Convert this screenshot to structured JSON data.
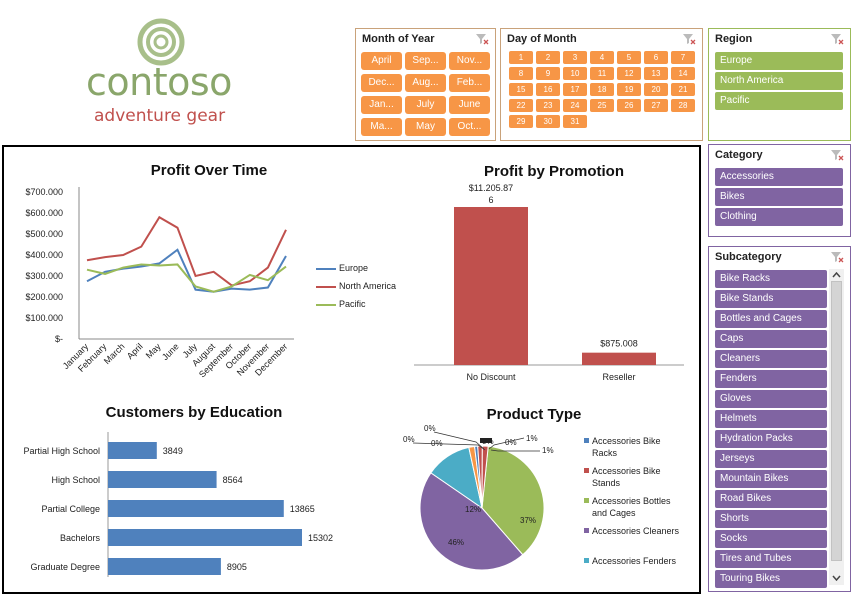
{
  "logo": {
    "word": "contoso",
    "sub": "adventure gear"
  },
  "slicers": {
    "month": {
      "title": "Month of Year",
      "items": [
        "April",
        "Sep...",
        "Nov...",
        "Dec...",
        "Aug...",
        "Feb...",
        "Jan...",
        "July",
        "June",
        "Ma...",
        "May",
        "Oct..."
      ]
    },
    "day": {
      "title": "Day of Month",
      "items": [
        "1",
        "2",
        "3",
        "4",
        "5",
        "6",
        "7",
        "8",
        "9",
        "10",
        "11",
        "12",
        "13",
        "14",
        "15",
        "16",
        "17",
        "18",
        "19",
        "20",
        "21",
        "22",
        "23",
        "24",
        "25",
        "26",
        "27",
        "28",
        "29",
        "30",
        "31"
      ]
    },
    "region": {
      "title": "Region",
      "items": [
        "Europe",
        "North America",
        "Pacific"
      ]
    },
    "category": {
      "title": "Category",
      "items": [
        "Accessories",
        "Bikes",
        "Clothing"
      ]
    },
    "subcategory": {
      "title": "Subcategory",
      "items": [
        "Bike Racks",
        "Bike Stands",
        "Bottles and Cages",
        "Caps",
        "Cleaners",
        "Fenders",
        "Gloves",
        "Helmets",
        "Hydration Packs",
        "Jerseys",
        "Mountain Bikes",
        "Road Bikes",
        "Shorts",
        "Socks",
        "Tires and Tubes",
        "Touring Bikes"
      ]
    }
  },
  "colors": {
    "orange": "#f79646",
    "green": "#9bbb59",
    "purple": "#8064a2",
    "blue": "#4f81bd",
    "red": "#c0504d",
    "teal": "#4bacc6"
  },
  "chart_data": [
    {
      "type": "line",
      "title": "Profit Over Time",
      "x": [
        "January",
        "February",
        "March",
        "April",
        "May",
        "June",
        "July",
        "August",
        "September",
        "October",
        "November",
        "December"
      ],
      "yticks": [
        "$700.000",
        "$600.000",
        "$500.000",
        "$400.000",
        "$300.000",
        "$200.000",
        "$100.000",
        "$-"
      ],
      "ylim": [
        0,
        700000
      ],
      "series": [
        {
          "name": "Europe",
          "color": "#4f81bd",
          "values": [
            275000,
            320000,
            335000,
            345000,
            360000,
            425000,
            235000,
            225000,
            240000,
            235000,
            245000,
            395000
          ]
        },
        {
          "name": "North America",
          "color": "#c0504d",
          "values": [
            375000,
            390000,
            400000,
            440000,
            580000,
            530000,
            300000,
            320000,
            255000,
            275000,
            340000,
            520000
          ]
        },
        {
          "name": "Pacific",
          "color": "#9bbb59",
          "values": [
            330000,
            310000,
            340000,
            355000,
            350000,
            355000,
            250000,
            225000,
            250000,
            305000,
            280000,
            345000
          ]
        }
      ]
    },
    {
      "type": "bar",
      "title": "Profit by Promotion",
      "categories": [
        "No Discount",
        "Reseller"
      ],
      "values": [
        11205876,
        875008
      ],
      "labels": [
        "$11.205.87",
        "6",
        "$875.008"
      ],
      "color": "#c0504d"
    },
    {
      "type": "bar",
      "orientation": "horizontal",
      "title": "Customers by Education",
      "categories": [
        "Partial High School",
        "High School",
        "Partial College",
        "Bachelors",
        "Graduate Degree"
      ],
      "values": [
        3849,
        8564,
        13865,
        15302,
        8905
      ],
      "color": "#4f81bd"
    },
    {
      "type": "pie",
      "title": "Product Type",
      "labels": [
        "37%",
        "46%",
        "12%",
        "0%",
        "0%",
        "0%",
        "0%",
        "0%",
        "1%",
        "1%"
      ],
      "legend": [
        "Accessories Bike Racks",
        "Accessories Bike Stands",
        "Accessories Bottles and Cages",
        "Accessories Cleaners",
        "Accessories Fenders"
      ],
      "legend_colors": [
        "#4f81bd",
        "#c0504d",
        "#9bbb59",
        "#8064a2",
        "#4bacc6"
      ]
    }
  ]
}
